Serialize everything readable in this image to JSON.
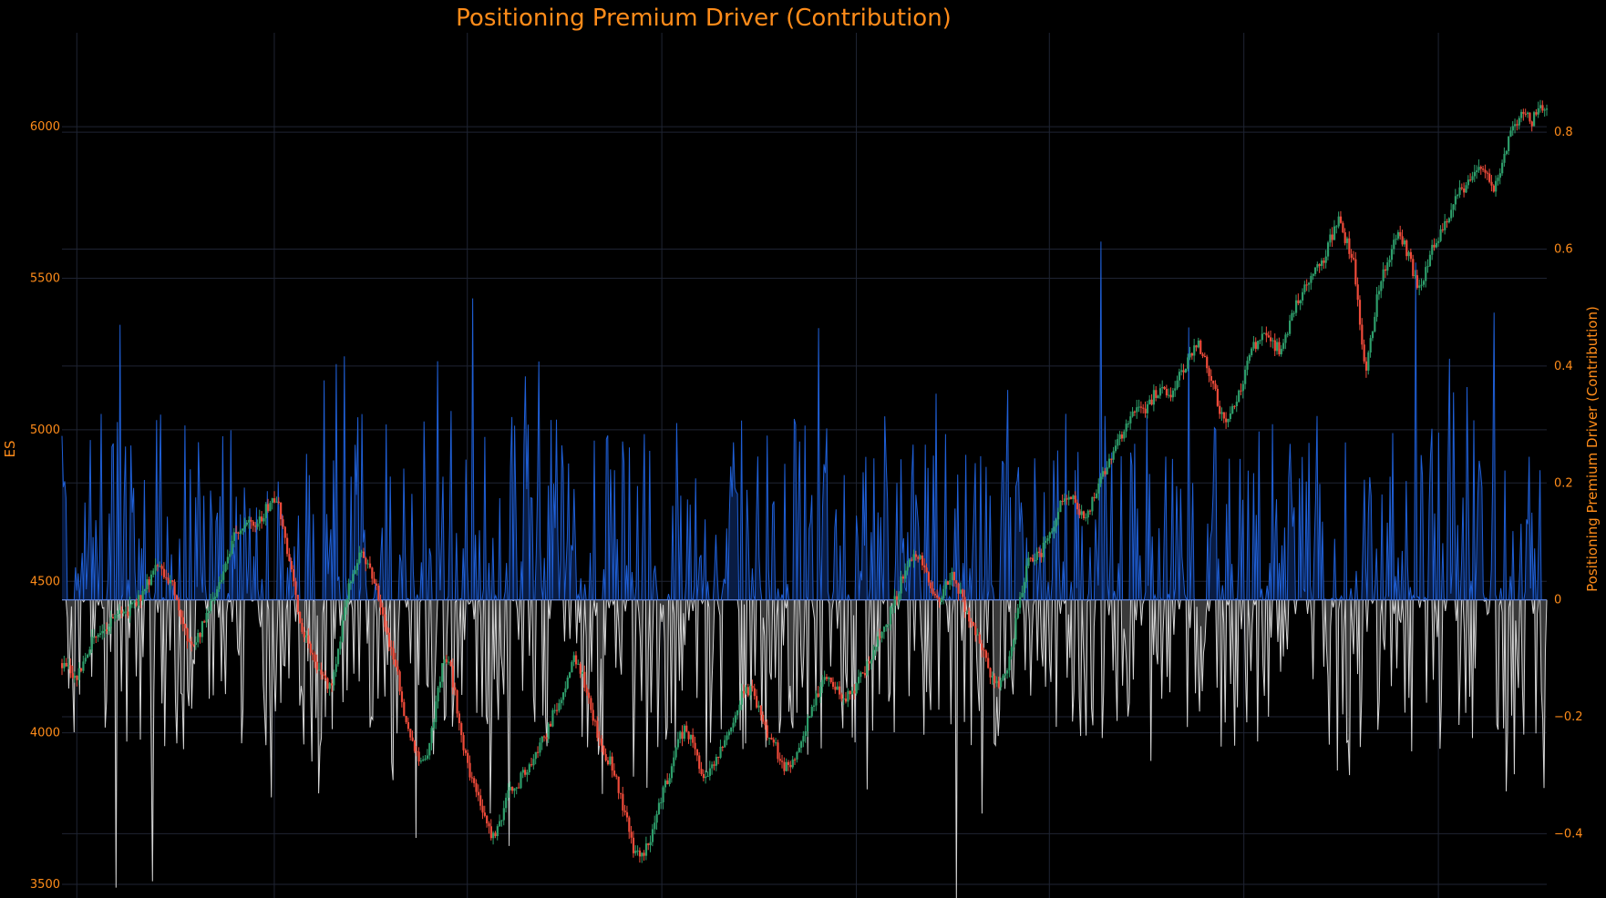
{
  "chart_data": {
    "type": "candlestick+area",
    "title": "Positioning Premium Driver (Contribution)",
    "y_left": {
      "label": "ES",
      "ticks": [
        3500,
        4000,
        4500,
        5000,
        5500,
        6000
      ],
      "tick_labels": [
        "3500",
        "4000",
        "4500",
        "5000",
        "5500",
        "6000"
      ],
      "range": [
        3455,
        6310
      ]
    },
    "y_right": {
      "label": "Positioning Premium Driver (Contribution)",
      "ticks": [
        -0.4,
        -0.2,
        0,
        0.2,
        0.4,
        0.6,
        0.8
      ],
      "tick_labels": [
        "−0.4",
        "−0.2",
        "0",
        "0.2",
        "0.4",
        "0.6",
        "0.8"
      ],
      "range": [
        -0.51,
        0.97
      ]
    },
    "x": {
      "range": [
        0,
        1
      ],
      "grid_positions": [
        0.01,
        0.143,
        0.273,
        0.404,
        0.535,
        0.665,
        0.796,
        0.927
      ]
    },
    "grid": true,
    "legend": "none",
    "es_path": [
      [
        0.0,
        4230
      ],
      [
        0.01,
        4180
      ],
      [
        0.02,
        4300
      ],
      [
        0.035,
        4380
      ],
      [
        0.05,
        4420
      ],
      [
        0.058,
        4500
      ],
      [
        0.063,
        4545
      ],
      [
        0.07,
        4520
      ],
      [
        0.075,
        4480
      ],
      [
        0.08,
        4400
      ],
      [
        0.085,
        4300
      ],
      [
        0.09,
        4290
      ],
      [
        0.095,
        4360
      ],
      [
        0.1,
        4420
      ],
      [
        0.105,
        4480
      ],
      [
        0.11,
        4560
      ],
      [
        0.115,
        4640
      ],
      [
        0.12,
        4680
      ],
      [
        0.125,
        4700
      ],
      [
        0.13,
        4660
      ],
      [
        0.135,
        4720
      ],
      [
        0.14,
        4760
      ],
      [
        0.145,
        4780
      ],
      [
        0.15,
        4640
      ],
      [
        0.155,
        4520
      ],
      [
        0.16,
        4360
      ],
      [
        0.165,
        4310
      ],
      [
        0.17,
        4240
      ],
      [
        0.175,
        4200
      ],
      [
        0.18,
        4150
      ],
      [
        0.185,
        4220
      ],
      [
        0.19,
        4420
      ],
      [
        0.195,
        4510
      ],
      [
        0.2,
        4600
      ],
      [
        0.205,
        4560
      ],
      [
        0.21,
        4500
      ],
      [
        0.215,
        4420
      ],
      [
        0.22,
        4300
      ],
      [
        0.225,
        4220
      ],
      [
        0.23,
        4060
      ],
      [
        0.235,
        4000
      ],
      [
        0.24,
        3910
      ],
      [
        0.245,
        3920
      ],
      [
        0.25,
        4030
      ],
      [
        0.255,
        4200
      ],
      [
        0.26,
        4250
      ],
      [
        0.265,
        4120
      ],
      [
        0.27,
        3950
      ],
      [
        0.275,
        3860
      ],
      [
        0.28,
        3800
      ],
      [
        0.285,
        3700
      ],
      [
        0.29,
        3650
      ],
      [
        0.295,
        3700
      ],
      [
        0.3,
        3820
      ],
      [
        0.305,
        3800
      ],
      [
        0.31,
        3870
      ],
      [
        0.315,
        3880
      ],
      [
        0.32,
        3950
      ],
      [
        0.325,
        3980
      ],
      [
        0.33,
        4050
      ],
      [
        0.335,
        4100
      ],
      [
        0.34,
        4180
      ],
      [
        0.345,
        4260
      ],
      [
        0.35,
        4200
      ],
      [
        0.355,
        4120
      ],
      [
        0.36,
        4000
      ],
      [
        0.365,
        3930
      ],
      [
        0.37,
        3900
      ],
      [
        0.375,
        3810
      ],
      [
        0.38,
        3720
      ],
      [
        0.385,
        3610
      ],
      [
        0.39,
        3600
      ],
      [
        0.395,
        3630
      ],
      [
        0.4,
        3720
      ],
      [
        0.405,
        3820
      ],
      [
        0.41,
        3870
      ],
      [
        0.415,
        3980
      ],
      [
        0.42,
        4010
      ],
      [
        0.425,
        3970
      ],
      [
        0.43,
        3880
      ],
      [
        0.435,
        3850
      ],
      [
        0.44,
        3900
      ],
      [
        0.445,
        3960
      ],
      [
        0.45,
        4010
      ],
      [
        0.455,
        4080
      ],
      [
        0.46,
        4150
      ],
      [
        0.465,
        4130
      ],
      [
        0.47,
        4080
      ],
      [
        0.475,
        3990
      ],
      [
        0.48,
        3960
      ],
      [
        0.485,
        3890
      ],
      [
        0.49,
        3880
      ],
      [
        0.495,
        3950
      ],
      [
        0.5,
        4000
      ],
      [
        0.505,
        4070
      ],
      [
        0.51,
        4140
      ],
      [
        0.515,
        4180
      ],
      [
        0.52,
        4160
      ],
      [
        0.525,
        4100
      ],
      [
        0.53,
        4130
      ],
      [
        0.535,
        4150
      ],
      [
        0.54,
        4200
      ],
      [
        0.545,
        4260
      ],
      [
        0.55,
        4310
      ],
      [
        0.555,
        4360
      ],
      [
        0.56,
        4420
      ],
      [
        0.565,
        4500
      ],
      [
        0.57,
        4560
      ],
      [
        0.575,
        4600
      ],
      [
        0.58,
        4550
      ],
      [
        0.585,
        4480
      ],
      [
        0.59,
        4420
      ],
      [
        0.595,
        4480
      ],
      [
        0.6,
        4520
      ],
      [
        0.605,
        4460
      ],
      [
        0.61,
        4390
      ],
      [
        0.615,
        4330
      ],
      [
        0.62,
        4280
      ],
      [
        0.625,
        4200
      ],
      [
        0.63,
        4150
      ],
      [
        0.635,
        4190
      ],
      [
        0.64,
        4290
      ],
      [
        0.645,
        4440
      ],
      [
        0.65,
        4560
      ],
      [
        0.655,
        4580
      ],
      [
        0.66,
        4600
      ],
      [
        0.665,
        4650
      ],
      [
        0.67,
        4720
      ],
      [
        0.675,
        4780
      ],
      [
        0.68,
        4790
      ],
      [
        0.685,
        4740
      ],
      [
        0.69,
        4710
      ],
      [
        0.695,
        4780
      ],
      [
        0.7,
        4830
      ],
      [
        0.705,
        4900
      ],
      [
        0.71,
        4960
      ],
      [
        0.715,
        5000
      ],
      [
        0.72,
        5050
      ],
      [
        0.725,
        5080
      ],
      [
        0.73,
        5070
      ],
      [
        0.735,
        5110
      ],
      [
        0.74,
        5130
      ],
      [
        0.745,
        5100
      ],
      [
        0.75,
        5150
      ],
      [
        0.755,
        5200
      ],
      [
        0.76,
        5260
      ],
      [
        0.765,
        5280
      ],
      [
        0.77,
        5230
      ],
      [
        0.775,
        5160
      ],
      [
        0.78,
        5060
      ],
      [
        0.785,
        5030
      ],
      [
        0.79,
        5080
      ],
      [
        0.795,
        5150
      ],
      [
        0.8,
        5250
      ],
      [
        0.805,
        5290
      ],
      [
        0.81,
        5330
      ],
      [
        0.815,
        5290
      ],
      [
        0.82,
        5260
      ],
      [
        0.825,
        5320
      ],
      [
        0.83,
        5400
      ],
      [
        0.835,
        5450
      ],
      [
        0.84,
        5500
      ],
      [
        0.845,
        5530
      ],
      [
        0.85,
        5570
      ],
      [
        0.855,
        5640
      ],
      [
        0.86,
        5690
      ],
      [
        0.865,
        5620
      ],
      [
        0.87,
        5560
      ],
      [
        0.872,
        5450
      ],
      [
        0.875,
        5300
      ],
      [
        0.878,
        5200
      ],
      [
        0.882,
        5320
      ],
      [
        0.885,
        5420
      ],
      [
        0.89,
        5520
      ],
      [
        0.895,
        5590
      ],
      [
        0.9,
        5640
      ],
      [
        0.905,
        5600
      ],
      [
        0.91,
        5520
      ],
      [
        0.915,
        5450
      ],
      [
        0.92,
        5560
      ],
      [
        0.925,
        5620
      ],
      [
        0.93,
        5660
      ],
      [
        0.935,
        5710
      ],
      [
        0.94,
        5780
      ],
      [
        0.945,
        5800
      ],
      [
        0.95,
        5830
      ],
      [
        0.955,
        5880
      ],
      [
        0.96,
        5850
      ],
      [
        0.965,
        5790
      ],
      [
        0.97,
        5880
      ],
      [
        0.975,
        5960
      ],
      [
        0.98,
        6020
      ],
      [
        0.985,
        6040
      ],
      [
        0.99,
        6010
      ],
      [
        0.995,
        6080
      ],
      [
        1.0,
        6060
      ]
    ],
    "note_scale": "x positions are normalized 0–1 across the time axis (no date labels shown)"
  }
}
